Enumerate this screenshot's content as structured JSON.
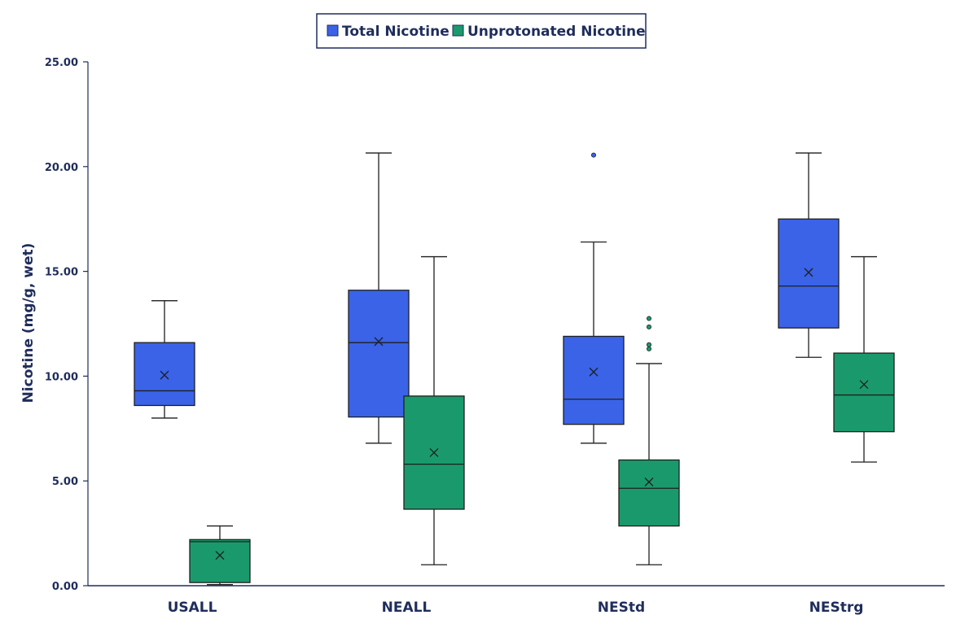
{
  "chart_data": {
    "type": "box",
    "ylabel": "Nicotine (mg/g, wet)",
    "xlabel": "",
    "ylim": [
      0,
      25
    ],
    "yticks": [
      "0.00",
      "5.00",
      "10.00",
      "15.00",
      "20.00",
      "25.00"
    ],
    "grid": false,
    "legend_position": "top-center",
    "categories": [
      "USALL",
      "NEALL",
      "NEStd",
      "NEStrg"
    ],
    "series": [
      {
        "name": "Total Nicotine",
        "color": "#3a63e8",
        "boxes": [
          {
            "min": 8.0,
            "q1": 8.6,
            "median": 9.3,
            "q3": 11.6,
            "max": 13.6,
            "mean": 10.05,
            "outliers": []
          },
          {
            "min": 6.8,
            "q1": 8.05,
            "median": 11.6,
            "q3": 14.1,
            "max": 20.65,
            "mean": 11.65,
            "outliers": []
          },
          {
            "min": 6.8,
            "q1": 7.7,
            "median": 8.9,
            "q3": 11.9,
            "max": 16.4,
            "mean": 10.2,
            "outliers": [
              20.55
            ]
          },
          {
            "min": 10.9,
            "q1": 12.3,
            "median": 14.3,
            "q3": 17.5,
            "max": 20.65,
            "mean": 14.95,
            "outliers": []
          }
        ]
      },
      {
        "name": "Unprotonated Nicotine",
        "color": "#1a9a6c",
        "boxes": [
          {
            "min": 0.05,
            "q1": 0.15,
            "median": 2.1,
            "q3": 2.2,
            "max": 2.85,
            "mean": 1.45,
            "outliers": []
          },
          {
            "min": 1.0,
            "q1": 3.65,
            "median": 5.8,
            "q3": 9.05,
            "max": 15.7,
            "mean": 6.35,
            "outliers": []
          },
          {
            "min": 1.0,
            "q1": 2.85,
            "median": 4.65,
            "q3": 6.0,
            "max": 10.6,
            "mean": 4.95,
            "outliers": [
              11.3,
              11.5,
              12.35,
              12.75
            ]
          },
          {
            "min": 5.9,
            "q1": 7.35,
            "median": 9.1,
            "q3": 11.1,
            "max": 15.7,
            "mean": 9.6,
            "outliers": []
          }
        ]
      }
    ]
  }
}
